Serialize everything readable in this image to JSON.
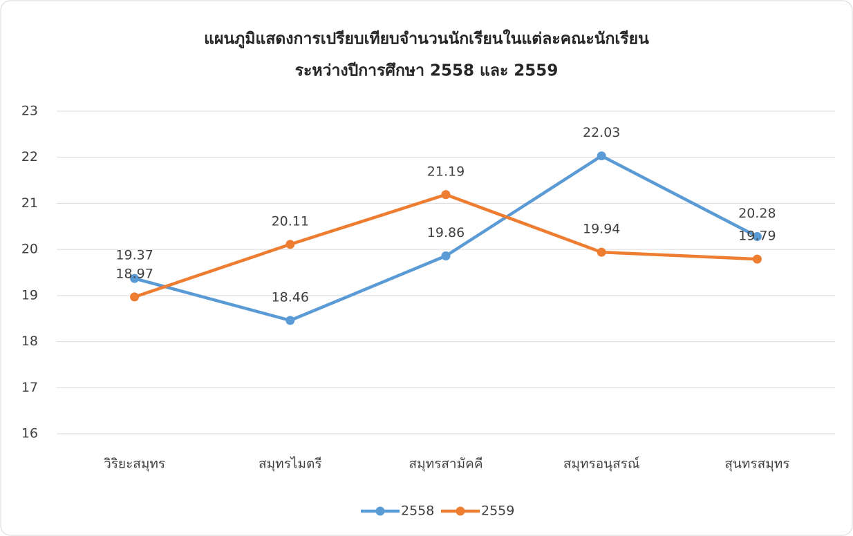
{
  "chart_data": {
    "type": "line",
    "title": [
      "แผนภูมิแสดงการเปรียบเทียบจำนวนนักเรียนในแต่ละคณะนักเรียน",
      "ระหว่างปีการศึกษา 2558 และ 2559"
    ],
    "categories": [
      "วิริยะสมุทร",
      "สมุทรไมตรี",
      "สมุทรสามัคคี",
      "สมุทรอนุสรณ์",
      "สุนทรสมุทร"
    ],
    "series": [
      {
        "name": "2558",
        "color": "#5b9bd5",
        "values": [
          19.37,
          18.46,
          19.86,
          22.03,
          20.28
        ]
      },
      {
        "name": "2559",
        "color": "#ed7d31",
        "values": [
          18.97,
          20.11,
          21.19,
          19.94,
          19.79
        ]
      }
    ],
    "ylim": [
      16,
      23
    ],
    "yticks": [
      16,
      17,
      18,
      19,
      20,
      21,
      22,
      23
    ],
    "grid": true,
    "legend": "bottom"
  }
}
